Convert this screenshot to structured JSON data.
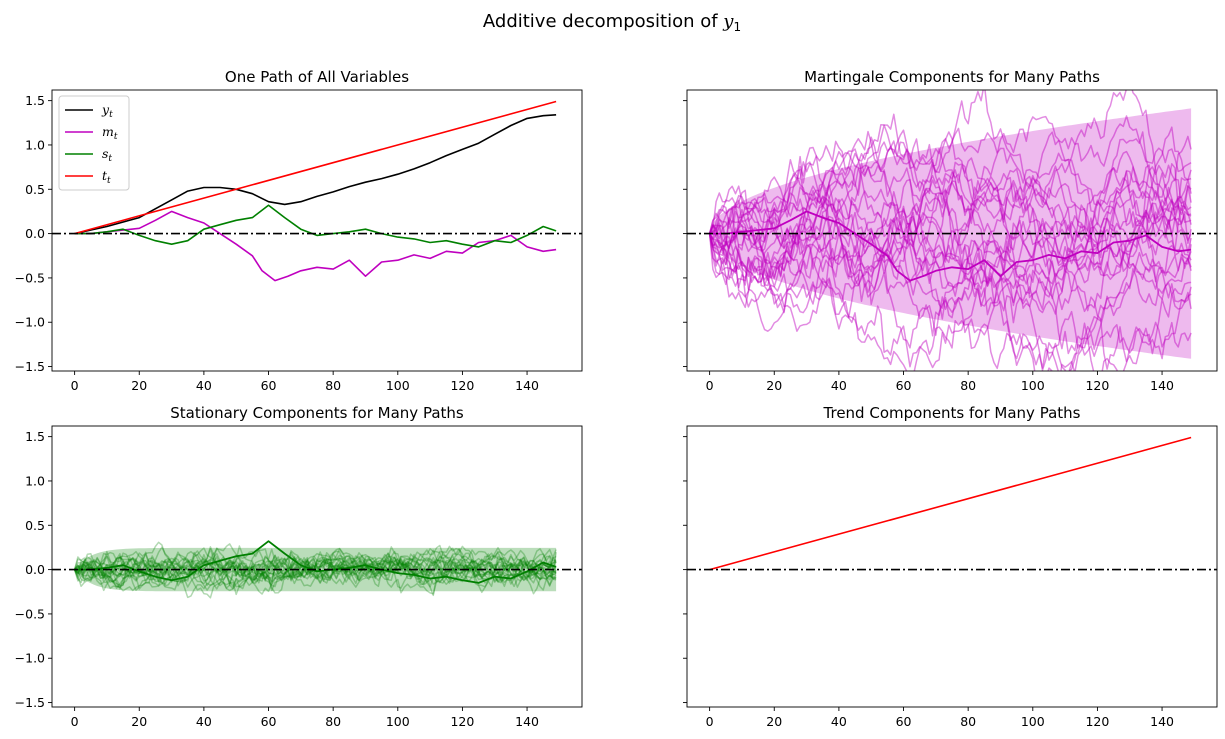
{
  "figure_title": "Additive decomposition of ",
  "figure_title_var": "y",
  "figure_title_sub": "1",
  "chart_data": [
    {
      "id": "tl",
      "type": "line",
      "title": "One Path of All Variables",
      "xlim": [
        -7,
        157
      ],
      "ylim": [
        -1.55,
        1.62
      ],
      "xticks": [
        0,
        20,
        40,
        60,
        80,
        100,
        120,
        140
      ],
      "yticks": [
        -1.5,
        -1.0,
        -0.5,
        0.0,
        0.5,
        1.0,
        1.5
      ],
      "ytick_labels": [
        "−1.5",
        "−1.0",
        "−0.5",
        "0.0",
        "0.5",
        "1.0",
        "1.5"
      ],
      "show_ytick_labels": true,
      "zero_line": true,
      "legend": [
        {
          "var": "y",
          "sub": "t",
          "color": "#000000"
        },
        {
          "var": "m",
          "sub": "t",
          "color": "#bf00bf"
        },
        {
          "var": "s",
          "sub": "t",
          "color": "#008000"
        },
        {
          "var": "t",
          "sub": "t",
          "color": "#ff0000"
        }
      ],
      "series": [
        {
          "name": "y_t",
          "color": "#000000",
          "x": [
            0,
            10,
            20,
            30,
            35,
            40,
            45,
            50,
            55,
            60,
            65,
            70,
            75,
            80,
            85,
            90,
            95,
            100,
            105,
            110,
            115,
            120,
            125,
            130,
            135,
            140,
            145,
            149
          ],
          "values": [
            0,
            0.08,
            0.18,
            0.38,
            0.48,
            0.52,
            0.52,
            0.5,
            0.45,
            0.36,
            0.33,
            0.36,
            0.42,
            0.47,
            0.53,
            0.58,
            0.62,
            0.67,
            0.73,
            0.8,
            0.88,
            0.95,
            1.02,
            1.12,
            1.22,
            1.3,
            1.33,
            1.34
          ]
        },
        {
          "name": "m_t",
          "color": "#bf00bf",
          "x": [
            0,
            5,
            10,
            15,
            20,
            25,
            30,
            35,
            40,
            45,
            50,
            55,
            58,
            62,
            66,
            70,
            75,
            80,
            85,
            90,
            95,
            100,
            105,
            110,
            115,
            120,
            125,
            130,
            135,
            140,
            145,
            149
          ],
          "values": [
            0,
            0,
            0.02,
            0.04,
            0.06,
            0.15,
            0.25,
            0.18,
            0.12,
            0.0,
            -0.12,
            -0.25,
            -0.42,
            -0.53,
            -0.48,
            -0.42,
            -0.38,
            -0.4,
            -0.3,
            -0.48,
            -0.32,
            -0.3,
            -0.24,
            -0.28,
            -0.2,
            -0.22,
            -0.1,
            -0.08,
            -0.02,
            -0.15,
            -0.2,
            -0.18
          ]
        },
        {
          "name": "s_t",
          "color": "#008000",
          "x": [
            0,
            5,
            10,
            15,
            20,
            25,
            30,
            35,
            40,
            45,
            50,
            55,
            60,
            65,
            70,
            75,
            80,
            85,
            90,
            95,
            100,
            105,
            110,
            115,
            120,
            125,
            130,
            135,
            140,
            145,
            149
          ],
          "values": [
            0,
            0,
            0.02,
            0.05,
            -0.02,
            -0.08,
            -0.12,
            -0.08,
            0.05,
            0.1,
            0.15,
            0.18,
            0.32,
            0.18,
            0.05,
            -0.02,
            0.0,
            0.02,
            0.05,
            0.0,
            -0.04,
            -0.06,
            -0.1,
            -0.08,
            -0.12,
            -0.15,
            -0.08,
            -0.1,
            -0.02,
            0.08,
            0.03
          ]
        },
        {
          "name": "t_t",
          "color": "#ff0000",
          "x": [
            0,
            149
          ],
          "values": [
            0,
            1.49
          ]
        }
      ]
    },
    {
      "id": "tr",
      "type": "line",
      "title": "Martingale Components for Many Paths",
      "xlim": [
        -7,
        157
      ],
      "ylim": [
        -1.55,
        1.62
      ],
      "xticks": [
        0,
        20,
        40,
        60,
        80,
        100,
        120,
        140
      ],
      "yticks": [
        -1.5,
        -1.0,
        -0.5,
        0.0,
        0.5,
        1.0,
        1.5
      ],
      "ytick_labels": [
        "−1.5",
        "−1.0",
        "−0.5",
        "0.0",
        "0.5",
        "1.0",
        "1.5"
      ],
      "show_ytick_labels": false,
      "zero_line": true,
      "band": {
        "color": "#bf00bf",
        "opacity": 0.27,
        "scale": 0.1157,
        "xmax": 149
      },
      "path_color": "#bf00bf",
      "paths_end": [
        0.95,
        0.8,
        0.62,
        0.45,
        0.3,
        0.2,
        0.1,
        0.0,
        -0.12,
        -0.2,
        -0.3,
        -0.42,
        -0.55,
        -0.68,
        -0.85,
        -1.12,
        0.22,
        0.5,
        -0.38,
        0.72,
        0.05,
        -0.6,
        0.35,
        -0.05,
        0.15
      ],
      "highlight_path": {
        "x": [
          0,
          5,
          10,
          15,
          20,
          25,
          30,
          35,
          40,
          45,
          50,
          55,
          58,
          62,
          66,
          70,
          75,
          80,
          85,
          90,
          95,
          100,
          105,
          110,
          115,
          120,
          125,
          130,
          135,
          140,
          145,
          149
        ],
        "values": [
          0,
          0,
          0.02,
          0.04,
          0.06,
          0.15,
          0.25,
          0.18,
          0.12,
          0.0,
          -0.12,
          -0.25,
          -0.42,
          -0.53,
          -0.48,
          -0.42,
          -0.38,
          -0.4,
          -0.3,
          -0.48,
          -0.32,
          -0.3,
          -0.24,
          -0.28,
          -0.2,
          -0.22,
          -0.1,
          -0.08,
          -0.02,
          -0.15,
          -0.2,
          -0.18
        ]
      }
    },
    {
      "id": "bl",
      "type": "line",
      "title": "Stationary Components for Many Paths",
      "xlim": [
        -7,
        157
      ],
      "ylim": [
        -1.55,
        1.62
      ],
      "xticks": [
        0,
        20,
        40,
        60,
        80,
        100,
        120,
        140
      ],
      "yticks": [
        -1.5,
        -1.0,
        -0.5,
        0.0,
        0.5,
        1.0,
        1.5
      ],
      "ytick_labels": [
        "−1.5",
        "−1.0",
        "−0.5",
        "0.0",
        "0.5",
        "1.0",
        "1.5"
      ],
      "show_ytick_labels": true,
      "zero_line": true,
      "band": {
        "color": "#008000",
        "opacity": 0.27,
        "halfwidth": 0.245,
        "xmax": 149
      },
      "path_color": "#008000",
      "paths_count": 22,
      "highlight_path": {
        "x": [
          0,
          5,
          10,
          15,
          20,
          25,
          30,
          35,
          40,
          45,
          50,
          55,
          60,
          65,
          70,
          75,
          80,
          85,
          90,
          95,
          100,
          105,
          110,
          115,
          120,
          125,
          130,
          135,
          140,
          145,
          149
        ],
        "values": [
          0,
          0,
          0.02,
          0.05,
          -0.02,
          -0.08,
          -0.12,
          -0.08,
          0.05,
          0.1,
          0.15,
          0.18,
          0.32,
          0.18,
          0.05,
          -0.02,
          0.0,
          0.02,
          0.05,
          0.0,
          -0.04,
          -0.06,
          -0.1,
          -0.08,
          -0.12,
          -0.15,
          -0.08,
          -0.1,
          -0.02,
          0.08,
          0.03
        ]
      }
    },
    {
      "id": "br",
      "type": "line",
      "title": "Trend Components for Many Paths",
      "xlim": [
        -7,
        157
      ],
      "ylim": [
        -1.55,
        1.62
      ],
      "xticks": [
        0,
        20,
        40,
        60,
        80,
        100,
        120,
        140
      ],
      "yticks": [
        -1.5,
        -1.0,
        -0.5,
        0.0,
        0.5,
        1.0,
        1.5
      ],
      "ytick_labels": [
        "−1.5",
        "−1.0",
        "−0.5",
        "0.0",
        "0.5",
        "1.0",
        "1.5"
      ],
      "show_ytick_labels": false,
      "zero_line": true,
      "series": [
        {
          "name": "t_t",
          "color": "#ff0000",
          "x": [
            0,
            149
          ],
          "values": [
            0,
            1.49
          ]
        }
      ]
    }
  ]
}
